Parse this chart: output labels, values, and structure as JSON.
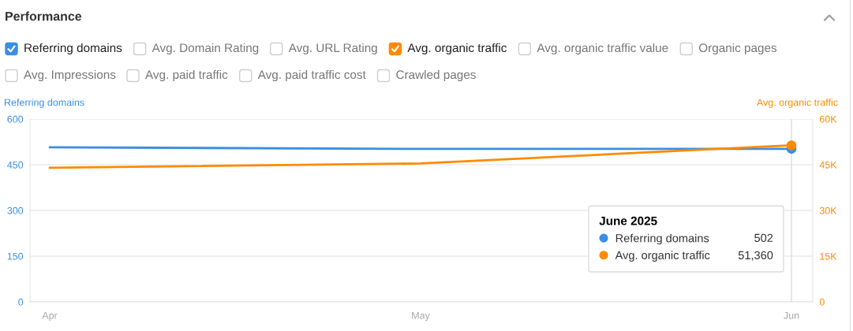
{
  "chart_data": [
    {
      "type": "other",
      "title": "Performance",
      "categories": [
        "Referring domains",
        "Avg. Domain Rating",
        "Avg. URL Rating",
        "Avg. organic traffic",
        "Avg. organic traffic value",
        "Organic pages",
        "Avg. Impressions",
        "Avg. paid traffic",
        "Avg. paid traffic cost",
        "Crawled pages"
      ],
      "colors": [
        "#3a8ee3",
        null,
        null,
        "#ff8a00",
        null,
        null,
        null,
        null,
        null,
        null
      ]
    },
    {
      "type": "line",
      "categories": [
        "Apr",
        "May",
        "Jun"
      ],
      "ylabel": "Referring domains",
      "y2label": "Avg. organic traffic",
      "legend_title": "June 2025",
      "annotations": [
        "502",
        "51,360"
      ],
      "series": [
        {
          "color": "#3a8ee3",
          "values": [
            507,
            502,
            502
          ]
        },
        {
          "color": "#ff8a00",
          "axis": "y2",
          "values": [
            44000,
            45400,
            51360
          ]
        },
        {
          "type": "scatter",
          "name": "Referring domains",
          "color": "#3a8ee3",
          "marker": "circle",
          "x": [
            "Jun"
          ],
          "values": [
            502
          ]
        },
        {
          "type": "scatter",
          "name": "Avg. organic traffic",
          "color": "#ff8a00",
          "marker": "circle",
          "axis": "y2",
          "x": [
            "Jun"
          ],
          "values": [
            51360
          ]
        }
      ],
      "ylim": [
        0,
        600
      ],
      "yticks": [
        0,
        150,
        300,
        450,
        600
      ],
      "y2lim": [
        0,
        60000
      ],
      "y2ticks": [
        0,
        {
          "value": 15000,
          "label": "15K"
        },
        {
          "value": 30000,
          "label": "30K"
        },
        {
          "value": 45000,
          "label": "45K"
        },
        {
          "value": 60000,
          "label": "60K"
        }
      ],
      "grid": "y",
      "legend": "bottom right",
      "line_style": "solid",
      "ref_lines": [
        {
          "axis": "x",
          "value": "Jun",
          "color": "#dddddd"
        }
      ]
    }
  ]
}
